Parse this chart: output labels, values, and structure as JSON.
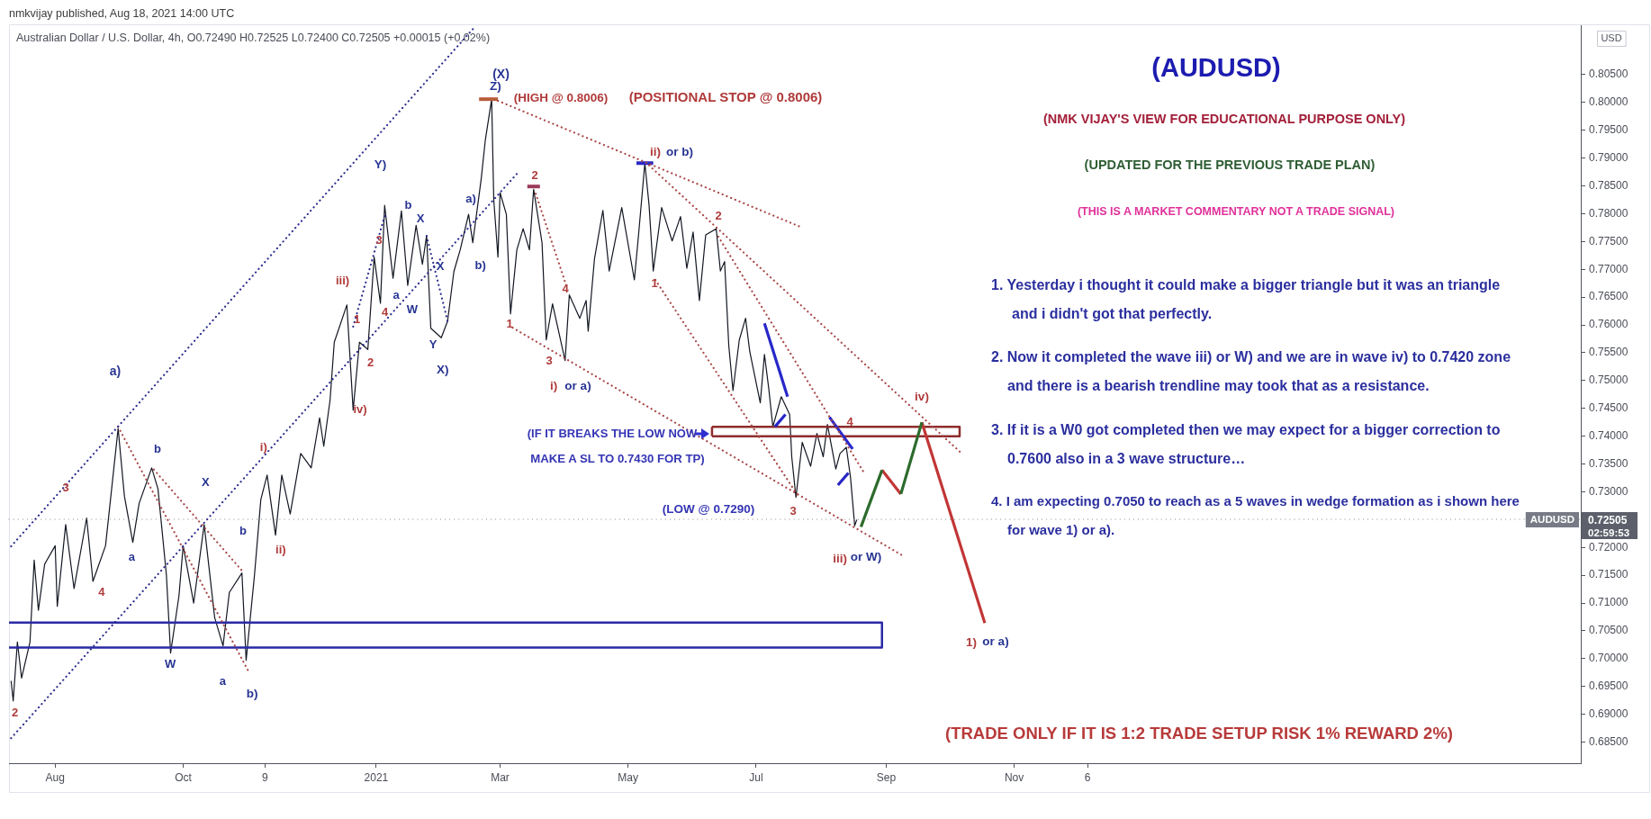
{
  "chart_data": {
    "type": "line",
    "title": "(AUDUSD)",
    "ylabel": "USD",
    "marker": "none",
    "line_style": "solid",
    "xlim": [
      "2020-07-10",
      "2022-07-29"
    ],
    "xticks": [
      {
        "value": "2020-08-01",
        "label": "Aug"
      },
      {
        "value": "2020-10-01",
        "label": "Oct"
      },
      {
        "value": "2020-11-09",
        "label": "9"
      },
      {
        "value": "2021-01-01",
        "label": "2021"
      },
      {
        "value": "2021-03-01",
        "label": "Mar"
      },
      {
        "value": "2021-05-01",
        "label": "May"
      },
      {
        "value": "2021-07-01",
        "label": "Jul"
      },
      {
        "value": "2021-09-01",
        "label": "Sep"
      },
      {
        "value": "2021-11-01",
        "label": "Nov"
      },
      {
        "value": "2021-12-06",
        "label": "6"
      }
    ],
    "ylim": [
      0.6812,
      0.8139
    ],
    "yticks": [
      {
        "value": 0.685,
        "label": "0.68500"
      },
      {
        "value": 0.69,
        "label": "0.69000"
      },
      {
        "value": 0.695,
        "label": "0.69500"
      },
      {
        "value": 0.7,
        "label": "0.70000"
      },
      {
        "value": 0.705,
        "label": "0.70500"
      },
      {
        "value": 0.71,
        "label": "0.71000"
      },
      {
        "value": 0.715,
        "label": "0.71500"
      },
      {
        "value": 0.72,
        "label": "0.72000"
      },
      {
        "value": 0.73,
        "label": "0.73000"
      },
      {
        "value": 0.735,
        "label": "0.73500"
      },
      {
        "value": 0.74,
        "label": "0.74000"
      },
      {
        "value": 0.745,
        "label": "0.74500"
      },
      {
        "value": 0.75,
        "label": "0.75000"
      },
      {
        "value": 0.755,
        "label": "0.75500"
      },
      {
        "value": 0.76,
        "label": "0.76000"
      },
      {
        "value": 0.765,
        "label": "0.76500"
      },
      {
        "value": 0.77,
        "label": "0.77000"
      },
      {
        "value": 0.775,
        "label": "0.77500"
      },
      {
        "value": 0.78,
        "label": "0.78000"
      },
      {
        "value": 0.785,
        "label": "0.78500"
      },
      {
        "value": 0.79,
        "label": "0.79000"
      },
      {
        "value": 0.795,
        "label": "0.79500"
      },
      {
        "value": 0.8,
        "label": "0.80000"
      },
      {
        "value": 0.805,
        "label": "0.80500"
      }
    ],
    "ref_lines": [
      {
        "axis": "y",
        "value": 0.72505,
        "label": "AUDUSD",
        "color": "#787b86",
        "line_style": "dotted"
      }
    ],
    "series": [
      {
        "color": "#131722",
        "x": [
          "2020-07-11",
          "2020-07-12",
          "2020-07-14",
          "2020-07-16",
          "2020-07-20",
          "2020-07-22",
          "2020-07-24",
          "2020-07-27",
          "2020-08-01",
          "2020-08-02",
          "2020-08-06",
          "2020-08-10",
          "2020-08-16",
          "2020-08-19",
          "2020-08-25",
          "2020-08-31",
          "2020-09-03",
          "2020-09-07",
          "2020-09-10",
          "2020-09-16",
          "2020-09-19",
          "2020-09-23",
          "2020-09-25",
          "2020-09-29",
          "2020-10-01",
          "2020-10-06",
          "2020-10-11",
          "2020-10-16",
          "2020-10-20",
          "2020-10-23",
          "2020-10-29",
          "2020-10-31",
          "2020-11-04",
          "2020-11-07",
          "2020-11-10",
          "2020-11-14",
          "2020-11-17",
          "2020-11-21",
          "2020-11-26",
          "2020-12-01",
          "2020-12-05",
          "2020-12-07",
          "2020-12-10",
          "2020-12-12",
          "2020-12-18",
          "2020-12-21",
          "2020-12-24",
          "2020-12-28",
          "2020-12-31",
          "2021-01-03",
          "2021-01-05",
          "2021-01-09",
          "2021-01-13",
          "2021-01-16",
          "2021-01-20",
          "2021-01-23",
          "2021-01-25",
          "2021-01-27",
          "2021-02-01",
          "2021-02-04",
          "2021-02-07",
          "2021-02-10",
          "2021-02-14",
          "2021-02-16",
          "2021-02-20",
          "2021-02-22",
          "2021-02-25",
          "2021-02-26",
          "2021-02-28",
          "2021-03-01",
          "2021-03-04",
          "2021-03-06",
          "2021-03-09",
          "2021-03-12",
          "2021-03-15",
          "2021-03-17",
          "2021-03-21",
          "2021-03-23",
          "2021-03-26",
          "2021-04-01",
          "2021-04-03",
          "2021-04-08",
          "2021-04-11",
          "2021-04-12",
          "2021-04-15",
          "2021-04-19",
          "2021-04-22",
          "2021-04-28",
          "2021-05-04",
          "2021-05-06",
          "2021-05-09",
          "2021-05-11",
          "2021-05-13",
          "2021-05-17",
          "2021-05-22",
          "2021-05-26",
          "2021-05-29",
          "2021-06-01",
          "2021-06-04",
          "2021-06-07",
          "2021-06-12",
          "2021-06-14",
          "2021-06-16",
          "2021-06-18",
          "2021-06-20",
          "2021-06-23",
          "2021-06-26",
          "2021-06-28",
          "2021-07-03",
          "2021-07-05",
          "2021-07-07",
          "2021-07-09",
          "2021-07-13",
          "2021-07-17",
          "2021-07-18",
          "2021-07-20",
          "2021-07-23",
          "2021-07-27",
          "2021-07-30",
          "2021-08-02",
          "2021-08-04",
          "2021-08-08",
          "2021-08-10",
          "2021-08-13",
          "2021-08-15",
          "2021-08-17",
          "2021-08-18"
        ],
        "values": [
          0.696,
          0.6924,
          0.703,
          0.6965,
          0.703,
          0.7177,
          0.7087,
          0.717,
          0.7203,
          0.7094,
          0.7241,
          0.7126,
          0.7253,
          0.7139,
          0.7203,
          0.7414,
          0.7292,
          0.7209,
          0.7279,
          0.7343,
          0.7305,
          0.7151,
          0.701,
          0.7113,
          0.7203,
          0.71,
          0.7241,
          0.7074,
          0.7023,
          0.7119,
          0.7154,
          0.6997,
          0.7151,
          0.7286,
          0.733,
          0.7222,
          0.733,
          0.726,
          0.7369,
          0.7343,
          0.7433,
          0.7382,
          0.7465,
          0.7569,
          0.7636,
          0.7447,
          0.7569,
          0.7556,
          0.7722,
          0.7639,
          0.7815,
          0.7684,
          0.7805,
          0.7671,
          0.7779,
          0.7709,
          0.7761,
          0.7594,
          0.7577,
          0.7607,
          0.7696,
          0.7735,
          0.7799,
          0.7748,
          0.7862,
          0.7933,
          0.8006,
          0.7825,
          0.7722,
          0.7838,
          0.7799,
          0.762,
          0.7735,
          0.7773,
          0.7735,
          0.7844,
          0.7748,
          0.7573,
          0.7638,
          0.7536,
          0.7654,
          0.7612,
          0.7644,
          0.7589,
          0.7719,
          0.7806,
          0.7697,
          0.7811,
          0.7681,
          0.7762,
          0.7891,
          0.7816,
          0.7697,
          0.7811,
          0.7751,
          0.7795,
          0.7702,
          0.7767,
          0.7644,
          0.7762,
          0.7773,
          0.7697,
          0.7714,
          0.7563,
          0.7482,
          0.7573,
          0.7612,
          0.7552,
          0.746,
          0.7547,
          0.7487,
          0.7417,
          0.7471,
          0.7439,
          0.7363,
          0.729,
          0.7389,
          0.7346,
          0.7405,
          0.7363,
          0.7421,
          0.7341,
          0.7369,
          0.738,
          0.7326,
          0.7239,
          0.725
        ]
      },
      {
        "color": "#2b2d8c",
        "line_style": "dotted",
        "x": [
          "2020-07-11",
          "2021-02-17"
        ],
        "values": [
          0.7202,
          0.8136
        ]
      },
      {
        "color": "#2b2d8c",
        "line_style": "dotted",
        "x": [
          "2020-07-11",
          "2021-03-10"
        ],
        "values": [
          0.6857,
          0.7876
        ]
      },
      {
        "color": "#a84848",
        "line_style": "dotted",
        "x": [
          "2020-08-31",
          "2020-11-01"
        ],
        "values": [
          0.7417,
          0.6978
        ]
      },
      {
        "color": "#a84848",
        "line_style": "dotted",
        "x": [
          "2020-09-17",
          "2020-10-30"
        ],
        "values": [
          0.734,
          0.7154
        ]
      },
      {
        "color": "#a84848",
        "line_style": "dotted",
        "x": [
          "2021-02-28",
          "2021-07-23"
        ],
        "values": [
          0.8003,
          0.7775
        ]
      },
      {
        "color": "#a84848",
        "line_style": "dotted",
        "x": [
          "2021-05-11",
          "2021-10-07"
        ],
        "values": [
          0.7887,
          0.7369
        ]
      },
      {
        "color": "#a84848",
        "line_style": "dotted",
        "x": [
          "2021-03-07",
          "2021-09-09"
        ],
        "values": [
          0.7595,
          0.7185
        ]
      },
      {
        "color": "#a84848",
        "line_style": "dotted",
        "x": [
          "2021-05-14",
          "2021-07-21"
        ],
        "values": [
          0.7681,
          0.7293
        ]
      },
      {
        "color": "#a84848",
        "line_style": "dotted",
        "x": [
          "2021-06-13",
          "2021-08-22"
        ],
        "values": [
          0.7759,
          0.7331
        ]
      },
      {
        "color": "#a84848",
        "line_style": "dotted",
        "x": [
          "2021-03-18",
          "2021-04-02"
        ],
        "values": [
          0.7836,
          0.7666
        ]
      },
      {
        "color": "#2b2d8c",
        "line_style": "dotted",
        "x": [
          "2021-01-25",
          "2021-02-04"
        ],
        "values": [
          0.776,
          0.7607
        ]
      },
      {
        "color": "#2b2d8c",
        "line_style": "dotted",
        "x": [
          "2020-12-21",
          "2021-01-05"
        ],
        "values": [
          0.7597,
          0.7796
        ]
      },
      {
        "color": "#2727c9",
        "x": [
          "2021-07-05",
          "2021-07-16"
        ],
        "values": [
          0.7603,
          0.7471
        ]
      },
      {
        "color": "#2626c6",
        "x": [
          "2021-07-10",
          "2021-07-15"
        ],
        "values": [
          0.7417,
          0.7439
        ]
      },
      {
        "color": "#2828cc",
        "x": [
          "2021-08-05",
          "2021-08-16"
        ],
        "values": [
          0.7434,
          0.7377
        ]
      },
      {
        "color": "#2525c4",
        "x": [
          "2021-08-09",
          "2021-08-14"
        ],
        "values": [
          0.7312,
          0.7334
        ]
      },
      {
        "color": "#2c6b2c",
        "x": [
          "2021-08-20",
          "2021-08-30",
          "2021-09-04",
          "2021-09-08",
          "2021-09-18"
        ],
        "values": [
          0.7237,
          0.7339,
          null,
          0.7296,
          0.7425
        ]
      },
      {
        "color": "#c23636",
        "x": [
          "2021-08-30",
          "2021-09-08",
          "2021-09-13",
          "2021-09-18",
          "2021-10-18"
        ],
        "values": [
          0.7339,
          0.7296,
          null,
          0.7425,
          0.7064
        ]
      },
      {
        "color": "#8f2d2d",
        "x": [
          "2021-06-10",
          "2021-10-06",
          "2021-10-06",
          "2021-06-10"
        ],
        "values": [
          0.7417,
          0.7417,
          0.74,
          0.74
        ]
      },
      {
        "color": "#2a2aa6",
        "x": [
          "2020-07-10",
          "2021-08-30",
          "2021-08-30",
          "2020-07-10"
        ],
        "values": [
          0.7065,
          0.7065,
          0.702,
          0.702
        ]
      },
      {
        "color": "#b85c3a",
        "x": [
          "2021-02-19",
          "2021-02-28"
        ],
        "values": [
          0.8006,
          0.8006
        ]
      },
      {
        "color": "#9a3a5a",
        "x": [
          "2021-03-14",
          "2021-03-20"
        ],
        "values": [
          0.7849,
          0.7849
        ]
      },
      {
        "color": "#2a2ac6",
        "x": [
          "2021-05-05",
          "2021-05-13"
        ],
        "values": [
          0.7891,
          0.7891
        ]
      },
      {
        "color": "#8f2d2d",
        "x": [
          "2021-06-10",
          "2021-06-10"
        ],
        "values": [
          0.74,
          0.7417
        ]
      }
    ],
    "annotations": [
      "nmkvijay published, Aug 18, 2021 14:00 UTC",
      "Australian Dollar / U.S. Dollar, 4h, O0.72490 H0.72525 L0.72400 C0.72505 +0.00015 (+0.02%)",
      "(NMK VIJAY'S VIEW FOR EDUCATIONAL PURPOSE ONLY)",
      "(UPDATED FOR THE PREVIOUS TRADE PLAN)",
      "(THIS IS A MARKET COMMENTARY NOT A TRADE SIGNAL)",
      "1. Yesterday i thought it could make a bigger triangle but it was an triangle\nand i didn't got that perfectly.",
      "2. Now it completed the wave iii) or W) and we are in wave iv) to 0.7420 zone\nand there is a bearish trendline may took that as a resistance.",
      "3. If it is a W0 got completed then we may expect for a bigger correction to\n0.7600 also in a 3 wave structure…",
      "4. I am expecting 0.7050 to reach as a 5 waves in wedge formation as i shown here\nfor wave 1) or a).",
      "(TRADE ONLY IF IT IS 1:2 TRADE SETUP RISK 1% REWARD 2%)",
      "0.72505",
      "02:59:53",
      "(X)",
      "Z)",
      "(HIGH @ 0.8006)",
      "(POSITIONAL STOP @ 0.8006)",
      "Y)",
      "b",
      "X",
      "3",
      "iii)",
      "a",
      "W",
      "X",
      "4",
      "1",
      "2",
      "Y",
      "X)",
      "iv)",
      "a)",
      "b)",
      "2",
      "1",
      "3",
      "4",
      "i)",
      "or a)",
      "ii)",
      "or b)",
      "1",
      "2",
      "iv)",
      "(IF IT BREAKS THE LOW NOW",
      "MAKE A SL TO 0.7430 FOR TP)",
      "(LOW @ 0.7290)",
      "3",
      "4",
      "iii)",
      "or W)",
      "1)",
      "or a)",
      "a)",
      "3",
      "4",
      "a",
      "b",
      "X",
      "b",
      "W",
      "a",
      "b)",
      "i)",
      "ii)",
      "2"
    ]
  }
}
